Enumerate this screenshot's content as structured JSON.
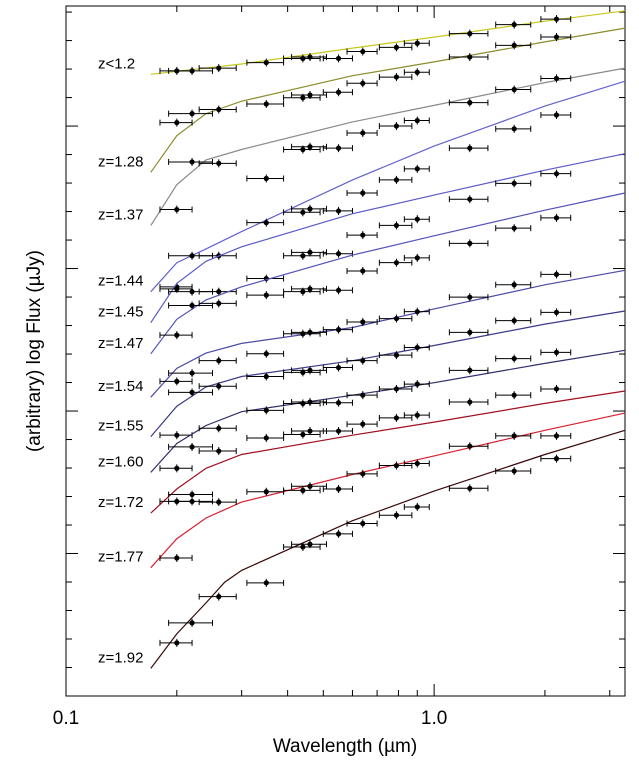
{
  "chart_data": {
    "type": "line",
    "title": "",
    "xlabel": "Wavelength (µm)",
    "ylabel": "(arbitrary) log Flux (µJy)",
    "xscale": "log",
    "xlim": [
      0.1,
      3.3
    ],
    "xticks": [
      {
        "value": 0.1,
        "label": "0.1"
      },
      {
        "value": 1.0,
        "label": "1.0"
      }
    ],
    "ylim": [
      0,
      100
    ],
    "grid": false,
    "legend": "none",
    "filters": [
      0.2,
      0.22,
      0.26,
      0.35,
      0.44,
      0.46,
      0.55,
      0.64,
      0.79,
      0.9,
      1.25,
      1.65,
      2.15
    ],
    "filter_half_widths": [
      0.02,
      0.03,
      0.03,
      0.04,
      0.05,
      0.05,
      0.05,
      0.06,
      0.08,
      0.07,
      0.15,
      0.18,
      0.2
    ],
    "series": [
      {
        "name": "z<1.2",
        "color": "#c8c81e",
        "model": [
          [
            0.17,
            90.1
          ],
          [
            0.3,
            91.6
          ],
          [
            0.6,
            93.9
          ],
          [
            1.0,
            95.5
          ],
          [
            2.0,
            97.8
          ],
          [
            3.3,
            99.3
          ]
        ],
        "points": [
          90.6,
          90.6,
          91.0,
          91.8,
          92.4,
          92.6,
          92.4,
          93.4,
          94.0,
          94.6,
          96.0,
          97.3,
          98.1
        ]
      },
      {
        "name": "z=1.28",
        "color": "#8c8c2c",
        "model": [
          [
            0.17,
            75.9
          ],
          [
            0.2,
            81.2
          ],
          [
            0.24,
            84.4
          ],
          [
            0.3,
            86.2
          ],
          [
            0.6,
            89.9
          ],
          [
            1.0,
            91.9
          ],
          [
            2.0,
            94.8
          ],
          [
            3.3,
            96.8
          ]
        ],
        "points": [
          83.1,
          84.4,
          85.0,
          85.8,
          86.7,
          87.1,
          87.5,
          88.8,
          89.7,
          90.4,
          92.6,
          94.3,
          95.5
        ]
      },
      {
        "name": "z=1.37",
        "color": "#8a8a8a",
        "model": [
          [
            0.17,
            68.2
          ],
          [
            0.2,
            74.1
          ],
          [
            0.24,
            77.7
          ],
          [
            0.3,
            79.2
          ],
          [
            0.6,
            83.2
          ],
          [
            1.0,
            85.6
          ],
          [
            2.0,
            88.9
          ],
          [
            3.3,
            91.0
          ]
        ],
        "points": [
          70.5,
          77.4,
          77.2,
          75.0,
          79.2,
          79.6,
          79.4,
          81.6,
          82.6,
          83.4,
          86.0,
          87.9,
          89.5
        ]
      },
      {
        "name": "z=1.44",
        "color": "#6262cc",
        "model": [
          [
            0.17,
            58.6
          ],
          [
            0.2,
            62.8
          ],
          [
            0.24,
            64.8
          ],
          [
            0.3,
            67.3
          ],
          [
            0.6,
            74.8
          ],
          [
            1.0,
            79.7
          ],
          [
            2.0,
            85.5
          ],
          [
            3.3,
            89.1
          ]
        ],
        "points": [
          59.3,
          63.8,
          63.8,
          68.6,
          70.1,
          70.6,
          70.3,
          72.9,
          74.8,
          76.4,
          79.4,
          82.2,
          84.2
        ]
      },
      {
        "name": "z=1.45",
        "color": "#5a5ac8",
        "model": [
          [
            0.17,
            54.1
          ],
          [
            0.2,
            59.8
          ],
          [
            0.24,
            63.0
          ],
          [
            0.3,
            65.1
          ],
          [
            0.6,
            69.9
          ],
          [
            1.0,
            72.6
          ],
          [
            2.0,
            76.2
          ],
          [
            3.3,
            78.6
          ]
        ],
        "points": [
          59.0,
          58.6,
          58.6,
          60.5,
          63.8,
          64.3,
          64.1,
          66.8,
          68.2,
          69.1,
          72.0,
          74.3,
          75.7
        ]
      },
      {
        "name": "z=1.47",
        "color": "#5252b8",
        "model": [
          [
            0.17,
            49.6
          ],
          [
            0.2,
            54.6
          ],
          [
            0.24,
            57.4
          ],
          [
            0.3,
            59.3
          ],
          [
            0.6,
            63.9
          ],
          [
            1.0,
            66.7
          ],
          [
            2.0,
            70.4
          ],
          [
            3.3,
            72.9
          ]
        ],
        "points": [
          52.3,
          56.6,
          56.9,
          58.1,
          58.6,
          59.0,
          58.8,
          61.6,
          62.8,
          63.5,
          65.6,
          67.8,
          69.3
        ]
      },
      {
        "name": "z=1.54",
        "color": "#4a4aa6",
        "model": [
          [
            0.17,
            43.3
          ],
          [
            0.2,
            47.5
          ],
          [
            0.24,
            49.7
          ],
          [
            0.3,
            51.1
          ],
          [
            0.6,
            53.4
          ],
          [
            1.0,
            56.1
          ],
          [
            2.0,
            59.6
          ],
          [
            3.3,
            61.7
          ]
        ],
        "points": [
          45.6,
          46.8,
          48.6,
          49.6,
          52.5,
          52.7,
          53.1,
          54.2,
          54.7,
          55.7,
          57.8,
          59.6,
          61.1
        ]
      },
      {
        "name": "z=1.55",
        "color": "#3a3a88",
        "model": [
          [
            0.17,
            37.6
          ],
          [
            0.2,
            42.0
          ],
          [
            0.24,
            44.8
          ],
          [
            0.3,
            46.3
          ],
          [
            0.6,
            48.6
          ],
          [
            1.0,
            50.8
          ],
          [
            2.0,
            53.9
          ],
          [
            3.3,
            55.8
          ]
        ],
        "points": [
          37.8,
          44.0,
          44.9,
          46.3,
          46.9,
          47.2,
          47.6,
          48.6,
          49.4,
          50.5,
          52.7,
          54.4,
          55.6
        ]
      },
      {
        "name": "z=1.60",
        "color": "#2e2e6a",
        "model": [
          [
            0.17,
            32.4
          ],
          [
            0.2,
            36.6
          ],
          [
            0.24,
            39.2
          ],
          [
            0.3,
            41.2
          ],
          [
            0.6,
            43.6
          ],
          [
            1.0,
            45.4
          ],
          [
            2.0,
            48.2
          ],
          [
            3.3,
            50.1
          ]
        ],
        "points": [
          33.0,
          36.1,
          38.8,
          41.4,
          42.4,
          42.6,
          42.5,
          43.6,
          44.5,
          45.2,
          47.2,
          48.9,
          49.8
        ]
      },
      {
        "name": "z=1.72",
        "color": "#a01020",
        "model": [
          [
            0.17,
            26.5
          ],
          [
            0.2,
            30.0
          ],
          [
            0.24,
            33.0
          ],
          [
            0.3,
            35.0
          ],
          [
            0.6,
            37.8
          ],
          [
            1.0,
            39.7
          ],
          [
            2.0,
            42.4
          ],
          [
            3.3,
            44.2
          ]
        ],
        "points": [
          28.2,
          28.2,
          35.5,
          37.4,
          37.9,
          38.4,
          38.4,
          39.4,
          40.3,
          40.7,
          42.6,
          43.6,
          44.5
        ]
      },
      {
        "name": "z=1.77",
        "color": "#d82030",
        "model": [
          [
            0.17,
            18.6
          ],
          [
            0.2,
            22.8
          ],
          [
            0.24,
            25.8
          ],
          [
            0.3,
            28.1
          ],
          [
            0.6,
            32.1
          ],
          [
            1.0,
            34.8
          ],
          [
            2.0,
            38.5
          ],
          [
            3.3,
            41.0
          ]
        ],
        "points": [
          20.0,
          29.2,
          28.1,
          29.6,
          29.8,
          30.4,
          30.0,
          32.2,
          33.4,
          33.7,
          36.2,
          37.7,
          37.7
        ]
      },
      {
        "name": "z=1.92",
        "color": "#3a0808",
        "model": [
          [
            0.17,
            4.0
          ],
          [
            0.2,
            9.0
          ],
          [
            0.24,
            13.5
          ],
          [
            0.27,
            16.5
          ],
          [
            0.3,
            18.2
          ],
          [
            0.6,
            25.4
          ],
          [
            1.0,
            29.7
          ],
          [
            2.0,
            35.0
          ],
          [
            3.3,
            38.5
          ]
        ],
        "points": [
          7.7,
          10.6,
          14.4,
          16.4,
          21.6,
          22.0,
          23.5,
          25.0,
          26.2,
          27.4,
          30.1,
          32.6,
          34.4
        ]
      }
    ]
  }
}
